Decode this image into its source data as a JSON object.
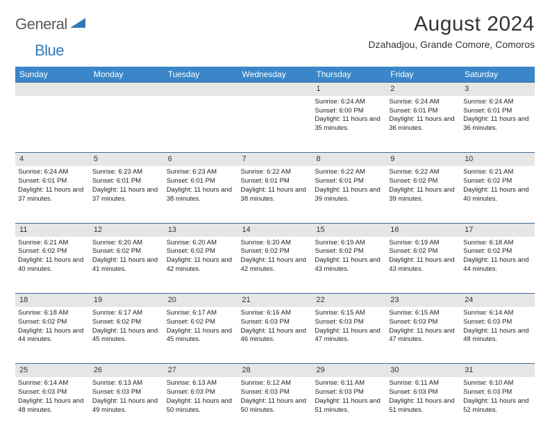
{
  "logo": {
    "word1": "General",
    "word2": "Blue"
  },
  "title": "August 2024",
  "location": "Dzahadjou, Grande Comore, Comoros",
  "colors": {
    "header_bg": "#3a86c8",
    "header_text": "#ffffff",
    "daynum_bg": "#e6e6e6",
    "rule": "#3a6a9a",
    "logo_gray": "#5a5a5a",
    "logo_blue": "#2f78b7"
  },
  "day_headers": [
    "Sunday",
    "Monday",
    "Tuesday",
    "Wednesday",
    "Thursday",
    "Friday",
    "Saturday"
  ],
  "weeks": [
    {
      "nums": [
        "",
        "",
        "",
        "",
        "1",
        "2",
        "3"
      ],
      "cells": [
        null,
        null,
        null,
        null,
        {
          "sunrise": "6:24 AM",
          "sunset": "6:00 PM",
          "daylight": "11 hours and 35 minutes."
        },
        {
          "sunrise": "6:24 AM",
          "sunset": "6:01 PM",
          "daylight": "11 hours and 36 minutes."
        },
        {
          "sunrise": "6:24 AM",
          "sunset": "6:01 PM",
          "daylight": "11 hours and 36 minutes."
        }
      ]
    },
    {
      "nums": [
        "4",
        "5",
        "6",
        "7",
        "8",
        "9",
        "10"
      ],
      "cells": [
        {
          "sunrise": "6:24 AM",
          "sunset": "6:01 PM",
          "daylight": "11 hours and 37 minutes."
        },
        {
          "sunrise": "6:23 AM",
          "sunset": "6:01 PM",
          "daylight": "11 hours and 37 minutes."
        },
        {
          "sunrise": "6:23 AM",
          "sunset": "6:01 PM",
          "daylight": "11 hours and 38 minutes."
        },
        {
          "sunrise": "6:22 AM",
          "sunset": "6:01 PM",
          "daylight": "11 hours and 38 minutes."
        },
        {
          "sunrise": "6:22 AM",
          "sunset": "6:01 PM",
          "daylight": "11 hours and 39 minutes."
        },
        {
          "sunrise": "6:22 AM",
          "sunset": "6:02 PM",
          "daylight": "11 hours and 39 minutes."
        },
        {
          "sunrise": "6:21 AM",
          "sunset": "6:02 PM",
          "daylight": "11 hours and 40 minutes."
        }
      ]
    },
    {
      "nums": [
        "11",
        "12",
        "13",
        "14",
        "15",
        "16",
        "17"
      ],
      "cells": [
        {
          "sunrise": "6:21 AM",
          "sunset": "6:02 PM",
          "daylight": "11 hours and 40 minutes."
        },
        {
          "sunrise": "6:20 AM",
          "sunset": "6:02 PM",
          "daylight": "11 hours and 41 minutes."
        },
        {
          "sunrise": "6:20 AM",
          "sunset": "6:02 PM",
          "daylight": "11 hours and 42 minutes."
        },
        {
          "sunrise": "6:20 AM",
          "sunset": "6:02 PM",
          "daylight": "11 hours and 42 minutes."
        },
        {
          "sunrise": "6:19 AM",
          "sunset": "6:02 PM",
          "daylight": "11 hours and 43 minutes."
        },
        {
          "sunrise": "6:19 AM",
          "sunset": "6:02 PM",
          "daylight": "11 hours and 43 minutes."
        },
        {
          "sunrise": "6:18 AM",
          "sunset": "6:02 PM",
          "daylight": "11 hours and 44 minutes."
        }
      ]
    },
    {
      "nums": [
        "18",
        "19",
        "20",
        "21",
        "22",
        "23",
        "24"
      ],
      "cells": [
        {
          "sunrise": "6:18 AM",
          "sunset": "6:02 PM",
          "daylight": "11 hours and 44 minutes."
        },
        {
          "sunrise": "6:17 AM",
          "sunset": "6:02 PM",
          "daylight": "11 hours and 45 minutes."
        },
        {
          "sunrise": "6:17 AM",
          "sunset": "6:02 PM",
          "daylight": "11 hours and 45 minutes."
        },
        {
          "sunrise": "6:16 AM",
          "sunset": "6:03 PM",
          "daylight": "11 hours and 46 minutes."
        },
        {
          "sunrise": "6:15 AM",
          "sunset": "6:03 PM",
          "daylight": "11 hours and 47 minutes."
        },
        {
          "sunrise": "6:15 AM",
          "sunset": "6:03 PM",
          "daylight": "11 hours and 47 minutes."
        },
        {
          "sunrise": "6:14 AM",
          "sunset": "6:03 PM",
          "daylight": "11 hours and 48 minutes."
        }
      ]
    },
    {
      "nums": [
        "25",
        "26",
        "27",
        "28",
        "29",
        "30",
        "31"
      ],
      "cells": [
        {
          "sunrise": "6:14 AM",
          "sunset": "6:03 PM",
          "daylight": "11 hours and 48 minutes."
        },
        {
          "sunrise": "6:13 AM",
          "sunset": "6:03 PM",
          "daylight": "11 hours and 49 minutes."
        },
        {
          "sunrise": "6:13 AM",
          "sunset": "6:03 PM",
          "daylight": "11 hours and 50 minutes."
        },
        {
          "sunrise": "6:12 AM",
          "sunset": "6:03 PM",
          "daylight": "11 hours and 50 minutes."
        },
        {
          "sunrise": "6:11 AM",
          "sunset": "6:03 PM",
          "daylight": "11 hours and 51 minutes."
        },
        {
          "sunrise": "6:11 AM",
          "sunset": "6:03 PM",
          "daylight": "11 hours and 51 minutes."
        },
        {
          "sunrise": "6:10 AM",
          "sunset": "6:03 PM",
          "daylight": "11 hours and 52 minutes."
        }
      ]
    }
  ],
  "labels": {
    "sunrise": "Sunrise: ",
    "sunset": "Sunset: ",
    "daylight": "Daylight: "
  }
}
